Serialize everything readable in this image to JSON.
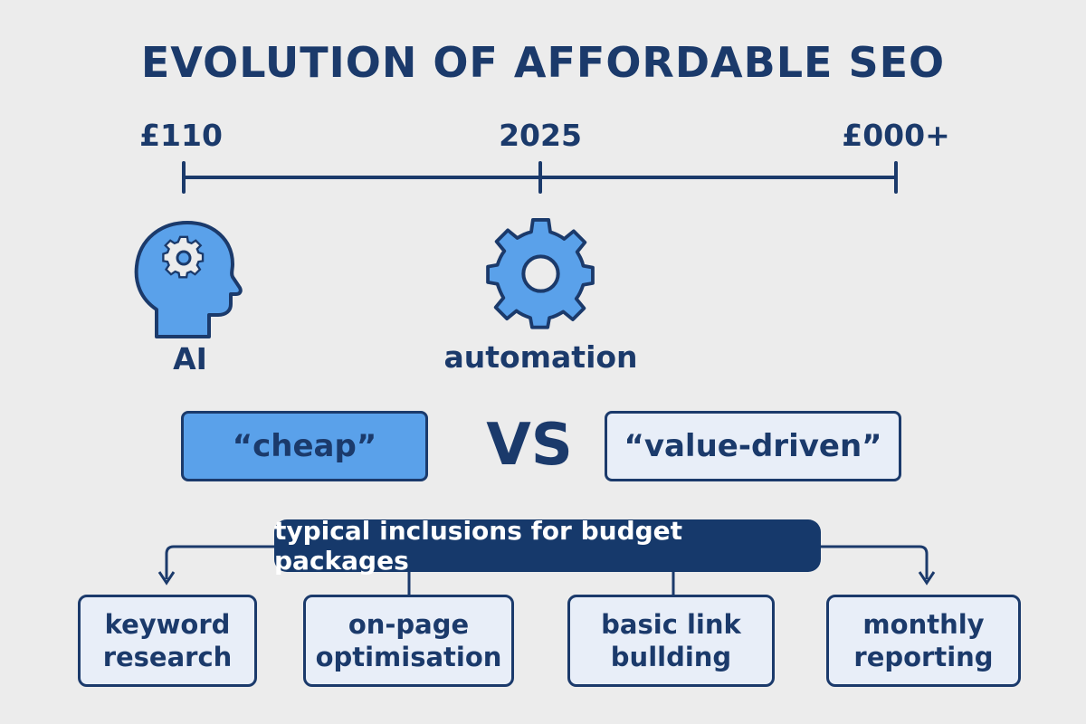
{
  "title": "EVOLUTION OF AFFORDABLE SEO",
  "timeline": {
    "ticks": [
      "£110",
      "2025",
      "£000+"
    ]
  },
  "icons": {
    "ai_label": "AI",
    "automation_label": "automation"
  },
  "comparison": {
    "left": "“cheap”",
    "middle": "VS",
    "right": "“value-driven”"
  },
  "inclusions": {
    "header": "typical inclusions for budget packages",
    "items": [
      {
        "line1": "keyword",
        "line2": "research"
      },
      {
        "line1": "on-page",
        "line2": "optimisation"
      },
      {
        "line1": "basic link",
        "line2": "bullding"
      },
      {
        "line1": "monthly",
        "line2": "reporting"
      }
    ]
  },
  "colors": {
    "navy": "#1b3a6b",
    "blue": "#5aa1ea",
    "light": "#e8eef8",
    "background": "#ececec"
  }
}
